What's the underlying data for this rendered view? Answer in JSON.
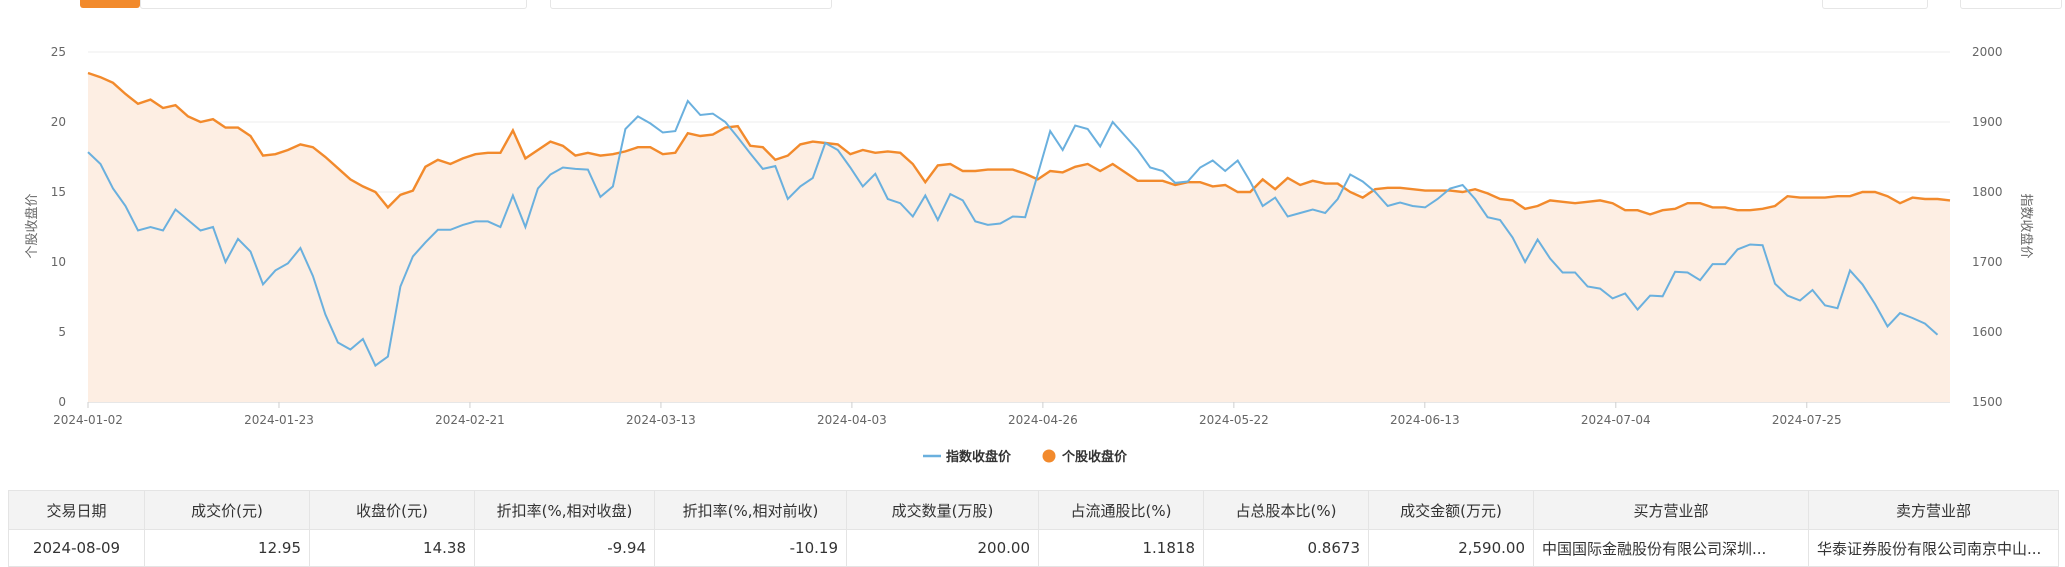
{
  "toolbar": {
    "accent": "#f28a2c"
  },
  "chart_data": {
    "type": "line",
    "ylabel_left": "个股收盘价",
    "ylabel_right": "指数收盘价",
    "ylim_left": [
      0,
      25
    ],
    "ylim_right": [
      1500,
      2000
    ],
    "yticks_left": [
      0,
      5,
      10,
      15,
      20,
      25
    ],
    "yticks_right": [
      1500,
      1600,
      1700,
      1800,
      1900,
      2000
    ],
    "xtick_labels": [
      "2024-01-02",
      "2024-01-23",
      "2024-02-21",
      "2024-03-13",
      "2024-04-03",
      "2024-04-26",
      "2024-05-22",
      "2024-06-13",
      "2024-07-04",
      "2024-07-25"
    ],
    "legend": [
      "指数收盘价",
      "个股收盘价"
    ],
    "legend_position": "bottom",
    "grid": true,
    "colors": {
      "index": "#6ab0de",
      "stock": "#f28a2c",
      "area": "#fdeee3"
    },
    "series": [
      {
        "name": "个股收盘价",
        "axis": "left",
        "values": [
          23.5,
          23.2,
          22.8,
          22.0,
          21.3,
          21.6,
          21.0,
          21.2,
          20.4,
          20.0,
          20.2,
          19.6,
          19.6,
          19.0,
          17.6,
          17.7,
          18.0,
          18.4,
          18.2,
          17.5,
          16.7,
          15.9,
          15.4,
          15.0,
          13.9,
          14.8,
          15.1,
          16.8,
          17.3,
          17.0,
          17.4,
          17.7,
          17.8,
          17.8,
          19.4,
          17.4,
          18.0,
          18.6,
          18.3,
          17.6,
          17.8,
          17.6,
          17.7,
          17.9,
          18.2,
          18.2,
          17.7,
          17.8,
          19.2,
          19.0,
          19.1,
          19.6,
          19.7,
          18.3,
          18.2,
          17.3,
          17.6,
          18.4,
          18.6,
          18.5,
          18.4,
          17.7,
          18.0,
          17.8,
          17.9,
          17.8,
          17.0,
          15.7,
          16.9,
          17.0,
          16.5,
          16.5,
          16.6,
          16.6,
          16.6,
          16.3,
          15.9,
          16.5,
          16.4,
          16.8,
          17.0,
          16.5,
          17.0,
          16.4,
          15.8,
          15.8,
          15.8,
          15.5,
          15.7,
          15.7,
          15.4,
          15.5,
          15.0,
          15.0,
          15.9,
          15.2,
          16.0,
          15.5,
          15.8,
          15.6,
          15.6,
          15.0,
          14.6,
          15.2,
          15.3,
          15.3,
          15.2,
          15.1,
          15.1,
          15.1,
          15.0,
          15.2,
          14.9,
          14.5,
          14.4,
          13.8,
          14.0,
          14.4,
          14.3,
          14.2,
          14.3,
          14.4,
          14.2,
          13.7,
          13.7,
          13.4,
          13.7,
          13.8,
          14.2,
          14.2,
          13.9,
          13.9,
          13.7,
          13.7,
          13.8,
          14.0,
          14.7,
          14.6,
          14.6,
          14.6,
          14.7,
          14.7,
          15.0,
          15.0,
          14.7,
          14.2,
          14.6,
          14.5,
          14.5,
          14.4
        ]
      },
      {
        "name": "指数收盘价",
        "axis": "right",
        "values": [
          1857,
          1840,
          1805,
          1780,
          1745,
          1750,
          1745,
          1775,
          1760,
          1745,
          1750,
          1700,
          1733,
          1715,
          1668,
          1688,
          1698,
          1720,
          1680,
          1625,
          1585,
          1575,
          1590,
          1552,
          1565,
          1665,
          1708,
          1728,
          1746,
          1746,
          1753,
          1758,
          1758,
          1750,
          1795,
          1750,
          1805,
          1825,
          1835,
          1833,
          1832,
          1793,
          1808,
          1890,
          1908,
          1898,
          1885,
          1887,
          1930,
          1910,
          1912,
          1900,
          1878,
          1855,
          1833,
          1837,
          1790,
          1808,
          1820,
          1870,
          1860,
          1835,
          1808,
          1826,
          1790,
          1784,
          1765,
          1795,
          1760,
          1797,
          1788,
          1758,
          1753,
          1755,
          1765,
          1764,
          1825,
          1887,
          1860,
          1895,
          1890,
          1865,
          1900,
          1880,
          1860,
          1835,
          1830,
          1813,
          1815,
          1835,
          1845,
          1830,
          1845,
          1815,
          1780,
          1792,
          1765,
          1770,
          1775,
          1770,
          1790,
          1825,
          1815,
          1800,
          1780,
          1785,
          1780,
          1778,
          1790,
          1805,
          1810,
          1790,
          1764,
          1760,
          1735,
          1700,
          1732,
          1705,
          1685,
          1685,
          1665,
          1662,
          1648,
          1655,
          1632,
          1652,
          1651,
          1686,
          1685,
          1674,
          1697,
          1697,
          1718,
          1725,
          1724,
          1669,
          1652,
          1645,
          1660,
          1638,
          1634,
          1688,
          1668,
          1640,
          1608,
          1627,
          1620,
          1612,
          1596
        ]
      }
    ]
  },
  "table": {
    "headers": [
      "交易日期",
      "成交价(元)",
      "收盘价(元)",
      "折扣率(%,相对收盘)",
      "折扣率(%,相对前收)",
      "成交数量(万股)",
      "占流通股比(%)",
      "占总股本比(%)",
      "成交金额(万元)",
      "买方营业部",
      "卖方营业部"
    ],
    "rows": [
      [
        "2024-08-09",
        "12.95",
        "14.38",
        "-9.94",
        "-10.19",
        "200.00",
        "1.1818",
        "0.8673",
        "2,590.00",
        "中国国际金融股份有限公司深圳...",
        "华泰证券股份有限公司南京中山..."
      ]
    ]
  }
}
